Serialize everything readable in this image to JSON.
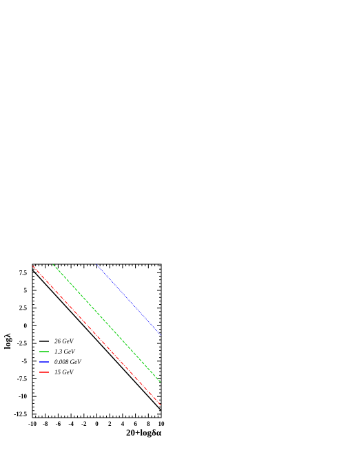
{
  "chart_data": {
    "type": "line",
    "title": "",
    "xlabel": "20+logδα",
    "ylabel": "logλ",
    "xlim": [
      -10,
      10
    ],
    "ylim": [
      -13,
      8.7
    ],
    "x_ticks": [
      -10,
      -8,
      -6,
      -4,
      -2,
      0,
      2,
      4,
      6,
      8,
      10
    ],
    "x_tick_labels": [
      "-10",
      "-8",
      "-6",
      "-4",
      "-2",
      "0",
      "2",
      "4",
      "6",
      "8",
      "10"
    ],
    "y_ticks": [
      7.5,
      5,
      2.5,
      0,
      -2.5,
      -5,
      -7.5,
      -10,
      -12.5
    ],
    "y_tick_labels": [
      "7.5",
      "5",
      "2.5",
      "0",
      "-2.5",
      "-5",
      "-7.5",
      "-10",
      "-12.5"
    ],
    "grid": false,
    "legend_position": "lower-left",
    "series": [
      {
        "name": "26 GeV",
        "color": "#000000",
        "dash": "solid",
        "x": [
          -10,
          10
        ],
        "y": [
          7.9,
          -12.0
        ]
      },
      {
        "name": "1.3 GeV",
        "color": "#00cc00",
        "dash": "dashed",
        "x": [
          -6.8,
          10
        ],
        "y": [
          8.7,
          -8.1
        ]
      },
      {
        "name": "0.008 GeV",
        "color": "#0000ff",
        "dash": "dotted",
        "x": [
          -0.1,
          10
        ],
        "y": [
          8.7,
          -1.4
        ]
      },
      {
        "name": "15 GeV",
        "color": "#ff0000",
        "dash": "dashdot",
        "x": [
          -10,
          10
        ],
        "y": [
          8.5,
          -11.3
        ]
      }
    ]
  }
}
